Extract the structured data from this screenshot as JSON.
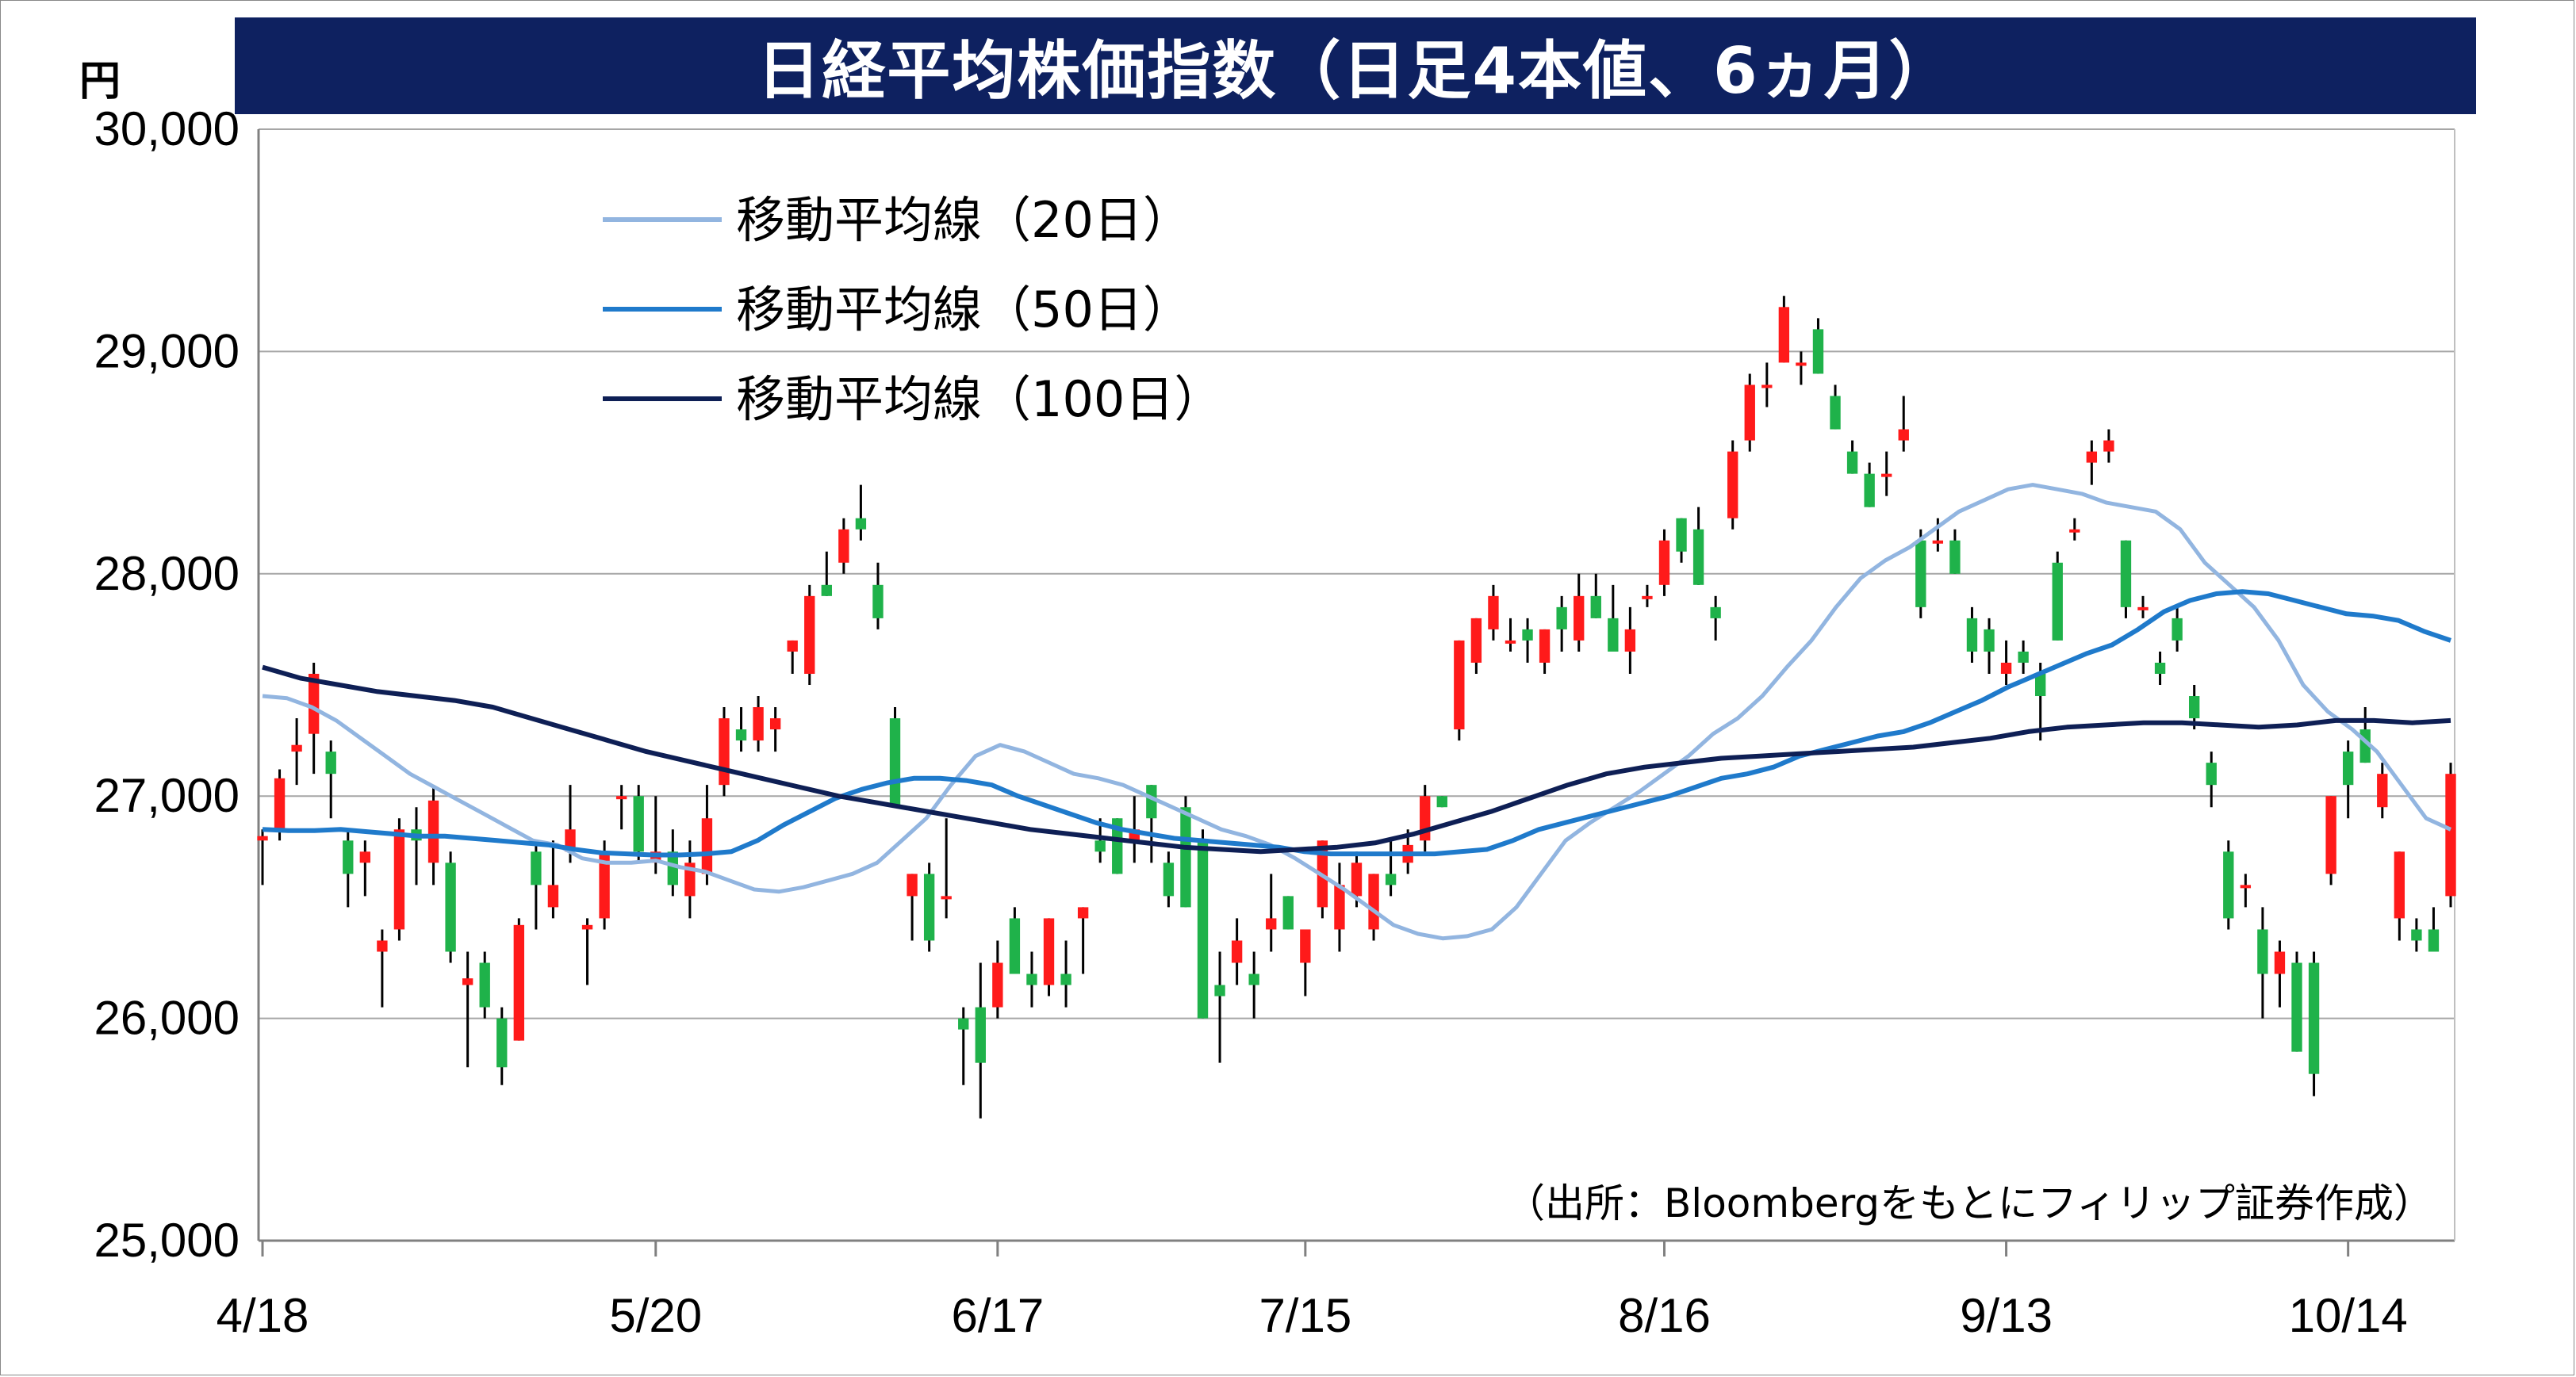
{
  "title": "日経平均株価指数（日足4本値、6ヵ月）",
  "y_unit": "円",
  "source": "（出所：Bloombergをもとにフィリップ証券作成）",
  "chart_data": {
    "type": "candlestick",
    "title": "日経平均株価指数（日足4本値、6ヵ月）",
    "ylabel": "円",
    "ylim": [
      25000,
      30000
    ],
    "y_ticks": [
      "25,000",
      "26,000",
      "27,000",
      "28,000",
      "29,000",
      "30,000"
    ],
    "y_tick_values": [
      25000,
      26000,
      27000,
      28000,
      29000,
      30000
    ],
    "x_ticks": [
      "4/18",
      "5/20",
      "6/17",
      "7/15",
      "8/16",
      "9/13",
      "10/14"
    ],
    "x_tick_index": [
      0,
      23,
      43,
      61,
      82,
      102,
      122
    ],
    "grid": true,
    "legend_placement": "top-left",
    "up_color": "#ff1a1a",
    "down_color": "#1fb24a",
    "candles": [
      [
        26800,
        26850,
        26600,
        26820
      ],
      [
        26850,
        27120,
        26800,
        27080
      ],
      [
        27200,
        27350,
        27050,
        27230
      ],
      [
        27280,
        27600,
        27100,
        27550
      ],
      [
        27200,
        27250,
        26900,
        27100
      ],
      [
        26800,
        26850,
        26500,
        26650
      ],
      [
        26700,
        26800,
        26550,
        26750
      ],
      [
        26300,
        26400,
        26050,
        26350
      ],
      [
        26400,
        26900,
        26350,
        26850
      ],
      [
        26850,
        26950,
        26600,
        26800
      ],
      [
        26700,
        27050,
        26600,
        26980
      ],
      [
        26700,
        26750,
        26250,
        26300
      ],
      [
        26150,
        26300,
        25780,
        26180
      ],
      [
        26250,
        26300,
        26000,
        26050
      ],
      [
        26000,
        26050,
        25700,
        25780
      ],
      [
        25900,
        26450,
        25900,
        26420
      ],
      [
        26750,
        26800,
        26400,
        26600
      ],
      [
        26500,
        26800,
        26450,
        26600
      ],
      [
        26750,
        27050,
        26700,
        26850
      ],
      [
        26400,
        26450,
        26150,
        26420
      ],
      [
        26450,
        26800,
        26400,
        26750
      ],
      [
        27000,
        27050,
        26850,
        27000
      ],
      [
        27000,
        27050,
        26700,
        26750
      ],
      [
        26700,
        27000,
        26650,
        26750
      ],
      [
        26750,
        26850,
        26550,
        26600
      ],
      [
        26550,
        26800,
        26450,
        26700
      ],
      [
        26650,
        27050,
        26600,
        26900
      ],
      [
        27050,
        27400,
        27000,
        27350
      ],
      [
        27300,
        27400,
        27200,
        27250
      ],
      [
        27250,
        27450,
        27200,
        27400
      ],
      [
        27300,
        27400,
        27200,
        27350
      ],
      [
        27650,
        27700,
        27550,
        27700
      ],
      [
        27550,
        27950,
        27500,
        27900
      ],
      [
        27950,
        28100,
        27900,
        27900
      ],
      [
        28050,
        28250,
        28000,
        28200
      ],
      [
        28250,
        28400,
        28150,
        28200
      ],
      [
        27950,
        28050,
        27750,
        27800
      ],
      [
        27350,
        27400,
        26950,
        26950
      ],
      [
        26550,
        26650,
        26350,
        26650
      ],
      [
        26650,
        26700,
        26300,
        26350
      ],
      [
        26550,
        26900,
        26450,
        26550
      ],
      [
        26000,
        26050,
        25700,
        25950
      ],
      [
        26050,
        26250,
        25550,
        25800
      ],
      [
        26050,
        26350,
        26000,
        26250
      ],
      [
        26450,
        26500,
        26200,
        26200
      ],
      [
        26200,
        26300,
        26050,
        26150
      ],
      [
        26150,
        26450,
        26100,
        26450
      ],
      [
        26200,
        26350,
        26050,
        26150
      ],
      [
        26450,
        26500,
        26200,
        26500
      ],
      [
        26800,
        26900,
        26700,
        26750
      ],
      [
        26900,
        26900,
        26650,
        26650
      ],
      [
        26800,
        27000,
        26700,
        26850
      ],
      [
        27050,
        27050,
        26700,
        26900
      ],
      [
        26700,
        26750,
        26500,
        26550
      ],
      [
        26950,
        27000,
        26500,
        26500
      ],
      [
        26800,
        26850,
        26000,
        26000
      ],
      [
        26150,
        26300,
        25800,
        26100
      ],
      [
        26250,
        26450,
        26150,
        26350
      ],
      [
        26200,
        26300,
        26000,
        26150
      ],
      [
        26400,
        26650,
        26300,
        26450
      ],
      [
        26550,
        26550,
        26400,
        26400
      ],
      [
        26250,
        26400,
        26100,
        26400
      ],
      [
        26500,
        26800,
        26450,
        26800
      ],
      [
        26400,
        26700,
        26300,
        26600
      ],
      [
        26550,
        26750,
        26500,
        26700
      ],
      [
        26400,
        26650,
        26350,
        26650
      ],
      [
        26650,
        26800,
        26550,
        26600
      ],
      [
        26700,
        26850,
        26650,
        26780
      ],
      [
        26800,
        27050,
        26750,
        27000
      ],
      [
        27000,
        27000,
        26950,
        26950
      ],
      [
        27300,
        27700,
        27250,
        27700
      ],
      [
        27600,
        27800,
        27550,
        27800
      ],
      [
        27750,
        27950,
        27700,
        27900
      ],
      [
        27700,
        27800,
        27650,
        27700
      ],
      [
        27750,
        27800,
        27600,
        27700
      ],
      [
        27600,
        27750,
        27550,
        27750
      ],
      [
        27850,
        27900,
        27650,
        27750
      ],
      [
        27700,
        28000,
        27650,
        27900
      ],
      [
        27900,
        28000,
        27800,
        27800
      ],
      [
        27800,
        27950,
        27700,
        27650
      ],
      [
        27650,
        27850,
        27550,
        27750
      ],
      [
        27900,
        27950,
        27850,
        27900
      ],
      [
        27950,
        28200,
        27900,
        28150
      ],
      [
        28250,
        28250,
        28050,
        28100
      ],
      [
        28200,
        28300,
        27950,
        27950
      ],
      [
        27850,
        27900,
        27700,
        27800
      ],
      [
        28250,
        28600,
        28200,
        28550
      ],
      [
        28600,
        28900,
        28550,
        28850
      ],
      [
        28850,
        28950,
        28750,
        28850
      ],
      [
        28950,
        29250,
        28950,
        29200
      ],
      [
        28950,
        29000,
        28850,
        28950
      ],
      [
        29100,
        29150,
        28900,
        28900
      ],
      [
        28800,
        28850,
        28650,
        28650
      ],
      [
        28550,
        28600,
        28450,
        28450
      ],
      [
        28450,
        28500,
        28300,
        28300
      ],
      [
        28450,
        28550,
        28350,
        28450
      ],
      [
        28600,
        28800,
        28550,
        28650
      ],
      [
        28150,
        28200,
        27800,
        27850
      ],
      [
        28150,
        28250,
        28100,
        28150
      ],
      [
        28150,
        28200,
        28000,
        28000
      ],
      [
        27800,
        27850,
        27600,
        27650
      ],
      [
        27750,
        27800,
        27550,
        27650
      ],
      [
        27550,
        27700,
        27500,
        27600
      ],
      [
        27650,
        27700,
        27550,
        27600
      ],
      [
        27550,
        27600,
        27250,
        27450
      ],
      [
        28050,
        28100,
        27700,
        27700
      ],
      [
        28200,
        28250,
        28150,
        28200
      ],
      [
        28500,
        28600,
        28400,
        28550
      ],
      [
        28550,
        28650,
        28500,
        28600
      ],
      [
        28150,
        28150,
        27800,
        27850
      ],
      [
        27850,
        27900,
        27800,
        27850
      ],
      [
        27600,
        27650,
        27500,
        27550
      ],
      [
        27800,
        27850,
        27650,
        27700
      ],
      [
        27450,
        27500,
        27300,
        27350
      ],
      [
        27150,
        27200,
        26950,
        27050
      ],
      [
        26750,
        26800,
        26400,
        26450
      ],
      [
        26600,
        26650,
        26500,
        26600
      ],
      [
        26400,
        26500,
        26000,
        26200
      ],
      [
        26200,
        26350,
        26050,
        26300
      ],
      [
        26250,
        26300,
        25850,
        25850
      ],
      [
        26250,
        26300,
        25650,
        25750
      ],
      [
        26650,
        27000,
        26600,
        27000
      ],
      [
        27200,
        27250,
        26900,
        27050
      ],
      [
        27300,
        27400,
        27150,
        27150
      ],
      [
        26950,
        27150,
        26900,
        27100
      ],
      [
        26450,
        26750,
        26350,
        26750
      ],
      [
        26400,
        26450,
        26300,
        26350
      ],
      [
        26400,
        26500,
        26350,
        26300
      ],
      [
        26550,
        27150,
        26500,
        27100
      ]
    ],
    "series": [
      {
        "name": "移動平均線（20日）",
        "color": "#92b5e0",
        "values": [
          27450,
          27440,
          27400,
          27340,
          27260,
          27180,
          27100,
          27040,
          26980,
          26920,
          26860,
          26800,
          26780,
          26720,
          26700,
          26700,
          26710,
          26680,
          26660,
          26620,
          26580,
          26570,
          26590,
          26620,
          26650,
          26700,
          26800,
          26900,
          27050,
          27180,
          27230,
          27200,
          27150,
          27100,
          27080,
          27050,
          27000,
          26950,
          26900,
          26850,
          26820,
          26780,
          26720,
          26650,
          26580,
          26500,
          26420,
          26380,
          26360,
          26370,
          26400,
          26500,
          26650,
          26800,
          26880,
          26950,
          27020,
          27100,
          27180,
          27280,
          27350,
          27450,
          27580,
          27700,
          27850,
          27980,
          28060,
          28120,
          28200,
          28280,
          28330,
          28380,
          28400,
          28380,
          28360,
          28320,
          28300,
          28280,
          28200,
          28050,
          27950,
          27850,
          27700,
          27500,
          27380,
          27300,
          27200,
          27050,
          26900,
          26850
        ],
        "index_offset": 0
      },
      {
        "name": "移動平均線（50日）",
        "color": "#1f7acb",
        "values": [
          26850,
          26845,
          26845,
          26850,
          26840,
          26830,
          26820,
          26820,
          26810,
          26800,
          26790,
          26780,
          26760,
          26745,
          26740,
          26735,
          26735,
          26740,
          26750,
          26800,
          26870,
          26930,
          26990,
          27030,
          27060,
          27080,
          27080,
          27070,
          27050,
          27000,
          26960,
          26920,
          26880,
          26850,
          26830,
          26810,
          26800,
          26790,
          26780,
          26770,
          26750,
          26740,
          26740,
          26740,
          26740,
          26740,
          26750,
          26760,
          26800,
          26850,
          26880,
          26910,
          26940,
          26970,
          27000,
          27040,
          27080,
          27100,
          27130,
          27180,
          27210,
          27240,
          27270,
          27290,
          27330,
          27380,
          27430,
          27490,
          27540,
          27590,
          27640,
          27680,
          27750,
          27830,
          27880,
          27910,
          27920,
          27910,
          27880,
          27850,
          27820,
          27810,
          27790,
          27740,
          27700
        ],
        "index_offset": 0
      },
      {
        "name": "移動平均線（100日）",
        "color": "#0e1f55",
        "values": [
          27580,
          27530,
          27500,
          27470,
          27450,
          27430,
          27400,
          27350,
          27300,
          27250,
          27200,
          27160,
          27120,
          27080,
          27040,
          27000,
          26970,
          26940,
          26910,
          26880,
          26850,
          26830,
          26810,
          26790,
          26770,
          26760,
          26750,
          26760,
          26770,
          26790,
          26830,
          26880,
          26930,
          26990,
          27050,
          27100,
          27130,
          27150,
          27170,
          27180,
          27190,
          27200,
          27210,
          27220,
          27240,
          27260,
          27290,
          27310,
          27320,
          27330,
          27330,
          27320,
          27310,
          27320,
          27340,
          27340,
          27330,
          27340
        ],
        "index_offset": 0
      }
    ]
  }
}
